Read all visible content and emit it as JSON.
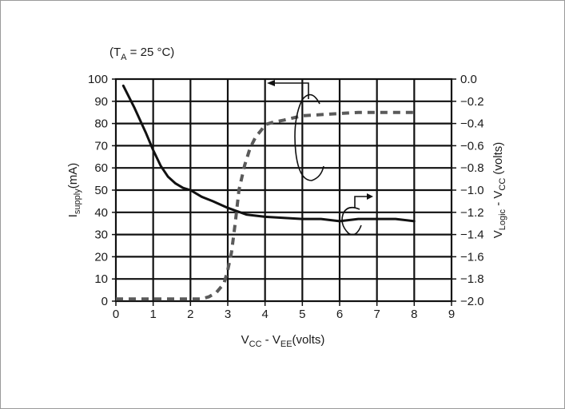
{
  "chart_data": {
    "type": "line",
    "annotation": "(TA = 25 °C)",
    "annotation_parts": {
      "prefix": "(T",
      "sub": "A",
      "suffix": " = 25 °C)"
    },
    "xlabel_parts": {
      "a": "V",
      "a_sub": "CC",
      "mid": " - V",
      "b_sub": "EE",
      "suffix": "(volts)"
    },
    "ylabel_left_parts": {
      "a": "I",
      "a_sub": "supply",
      "suffix": "(mA)"
    },
    "ylabel_right_parts": {
      "a": "V",
      "a_sub": "Logic",
      "mid": " - V",
      "b_sub": "CC",
      "suffix": " (volts)"
    },
    "xlim": [
      0,
      9
    ],
    "ylim_left": [
      0,
      100
    ],
    "ylim_right": [
      -2.0,
      0.0
    ],
    "grid": true,
    "x_ticks": [
      "0",
      "1",
      "2",
      "3",
      "4",
      "5",
      "6",
      "7",
      "8",
      "9"
    ],
    "y_left_ticks": [
      "0",
      "10",
      "20",
      "30",
      "40",
      "50",
      "60",
      "70",
      "80",
      "90",
      "100"
    ],
    "y_right_ticks": [
      "0.0",
      "−0.2",
      "−0.4",
      "−0.6",
      "−0.8",
      "−1.0",
      "−1.2",
      "−1.4",
      "−1.6",
      "−1.8",
      "−2.0"
    ],
    "series": [
      {
        "axis": "left",
        "style": "solid",
        "x": [
          0.2,
          0.5,
          0.8,
          1.0,
          1.2,
          1.4,
          1.6,
          1.8,
          2.0,
          2.3,
          2.6,
          3.0,
          3.5,
          4.0,
          4.5,
          5.0,
          5.5,
          6.0,
          6.5,
          7.0,
          7.5,
          8.0
        ],
        "values": [
          97,
          87,
          76,
          68,
          61,
          56,
          53,
          51,
          50,
          47,
          45,
          42,
          39,
          38,
          37.5,
          37,
          37,
          36,
          37,
          37,
          37,
          36
        ]
      },
      {
        "axis": "right",
        "style": "dashed",
        "x": [
          0.0,
          0.5,
          1.0,
          1.5,
          2.0,
          2.3,
          2.5,
          2.7,
          2.9,
          3.0,
          3.1,
          3.2,
          3.3,
          3.45,
          3.6,
          3.75,
          3.9,
          4.0,
          4.2,
          4.5,
          5.0,
          5.5,
          6.0,
          6.5,
          7.0,
          7.5,
          8.0
        ],
        "values": [
          -1.98,
          -1.98,
          -1.98,
          -1.98,
          -1.98,
          -1.98,
          -1.96,
          -1.92,
          -1.84,
          -1.72,
          -1.56,
          -1.3,
          -1.0,
          -0.78,
          -0.62,
          -0.52,
          -0.46,
          -0.41,
          -0.39,
          -0.37,
          -0.33,
          -0.32,
          -0.31,
          -0.3,
          -0.3,
          -0.3,
          -0.3
        ]
      }
    ]
  }
}
